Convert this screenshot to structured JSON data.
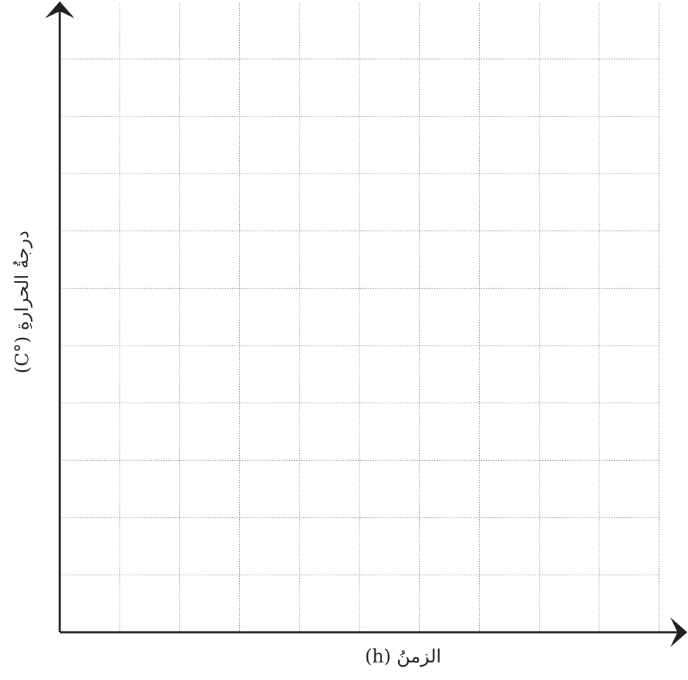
{
  "chart_data": {
    "type": "line",
    "title": "",
    "xlabel": "الزمنُ (h)",
    "ylabel": "درجةُ الحرارةِ (°C)",
    "grid": true,
    "x_divisions": 10,
    "y_divisions": 10,
    "series": []
  },
  "colors": {
    "axis": "#231f20",
    "grid": "#8a8a8a",
    "background": "#ffffff"
  }
}
